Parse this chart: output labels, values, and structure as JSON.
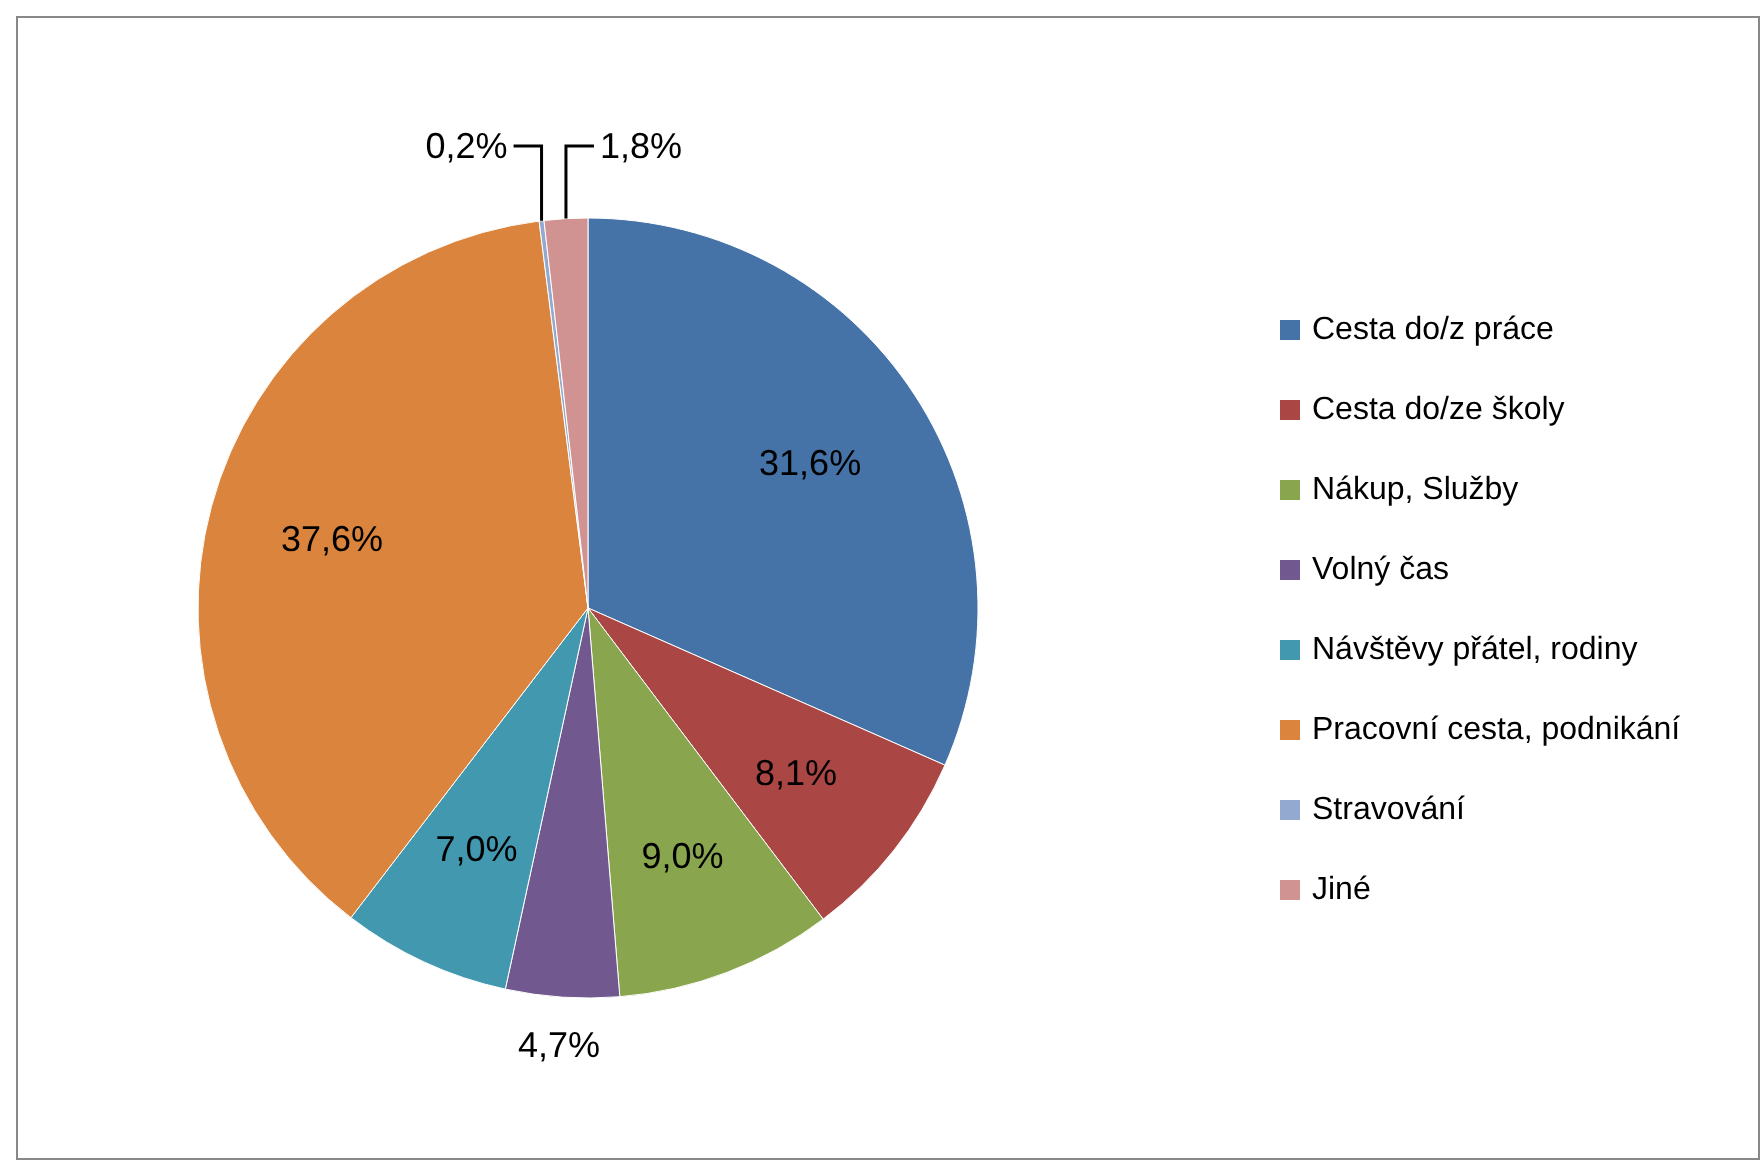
{
  "chart_data": {
    "type": "pie",
    "categories": [
      "Cesta do/z práce",
      "Cesta do/ze školy",
      "Nákup, Služby",
      "Volný čas",
      "Návštěvy přátel, rodiny",
      "Pracovní cesta, podnikání",
      "Stravování",
      "Jiné"
    ],
    "values": [
      31.6,
      8.1,
      9.0,
      4.7,
      7.0,
      37.6,
      0.2,
      1.8
    ],
    "colors": [
      "#4572a7",
      "#aa4643",
      "#89a54e",
      "#71588f",
      "#4198af",
      "#db843d",
      "#93a9cf",
      "#d19392"
    ],
    "value_labels": [
      "31,6%",
      "8,1%",
      "9,0%",
      "4,7%",
      "7,0%",
      "37,6%",
      "0,2%",
      "1,8%"
    ],
    "legend": "right"
  }
}
